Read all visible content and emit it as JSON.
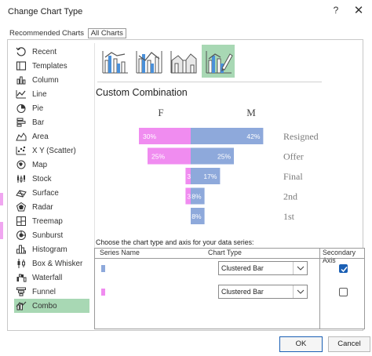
{
  "window": {
    "title": "Change Chart Type",
    "help_glyph": "?",
    "close_glyph": "✕"
  },
  "tabs": [
    {
      "label": "Recommended Charts",
      "active": false
    },
    {
      "label": "All Charts",
      "active": true
    }
  ],
  "sidebar": {
    "items": [
      {
        "label": "Recent",
        "icon": "recent-icon"
      },
      {
        "label": "Templates",
        "icon": "templates-icon"
      },
      {
        "label": "Column",
        "icon": "column-chart-icon"
      },
      {
        "label": "Line",
        "icon": "line-chart-icon"
      },
      {
        "label": "Pie",
        "icon": "pie-chart-icon"
      },
      {
        "label": "Bar",
        "icon": "bar-chart-icon"
      },
      {
        "label": "Area",
        "icon": "area-chart-icon"
      },
      {
        "label": "X Y (Scatter)",
        "icon": "scatter-chart-icon"
      },
      {
        "label": "Map",
        "icon": "map-chart-icon"
      },
      {
        "label": "Stock",
        "icon": "stock-chart-icon"
      },
      {
        "label": "Surface",
        "icon": "surface-chart-icon"
      },
      {
        "label": "Radar",
        "icon": "radar-chart-icon"
      },
      {
        "label": "Treemap",
        "icon": "treemap-chart-icon"
      },
      {
        "label": "Sunburst",
        "icon": "sunburst-chart-icon"
      },
      {
        "label": "Histogram",
        "icon": "histogram-chart-icon"
      },
      {
        "label": "Box & Whisker",
        "icon": "box-whisker-chart-icon"
      },
      {
        "label": "Waterfall",
        "icon": "waterfall-chart-icon"
      },
      {
        "label": "Funnel",
        "icon": "funnel-chart-icon"
      },
      {
        "label": "Combo",
        "icon": "combo-chart-icon"
      }
    ],
    "selected_index": 18
  },
  "gallery": {
    "thumbnails": [
      {
        "icon": "clustered-column-line-icon",
        "selected": false
      },
      {
        "icon": "clustered-column-line-secondary-axis-icon",
        "selected": false
      },
      {
        "icon": "stacked-area-clustered-column-icon",
        "selected": false
      },
      {
        "icon": "custom-combination-icon",
        "selected": true
      }
    ]
  },
  "section_title": "Custom Combination",
  "colors": {
    "series_f": "#f08cf0",
    "series_m": "#8ea9db",
    "selected_highlight": "#a8d8b4",
    "accent": "#1a5fb4"
  },
  "chart_data": {
    "type": "bar",
    "subtype": "butterfly / back-to-back horizontal bar",
    "categories": [
      "Resigned",
      "Offer",
      "Final",
      "2nd",
      "1st"
    ],
    "series": [
      {
        "name": "F",
        "values": [
          30,
          25,
          3,
          3,
          null
        ],
        "labels": [
          "30%",
          "25%",
          "3%",
          "3%",
          ""
        ],
        "color": "#f08cf0",
        "direction": "left"
      },
      {
        "name": "M",
        "values": [
          42,
          25,
          17,
          8,
          8
        ],
        "labels": [
          "42%",
          "25%",
          "17%",
          "8%",
          "8%"
        ],
        "color": "#8ea9db",
        "direction": "right"
      }
    ],
    "unit": "%",
    "legend": "series names as column headers above bars",
    "grid": false
  },
  "series_panel": {
    "caption": "Choose the chart type and axis for your data series:",
    "headers": {
      "name": "Series Name",
      "type": "Chart Type",
      "secondary": "Secondary Axis"
    },
    "rows": [
      {
        "swatch_color": "#8ea9db",
        "chart_type": "Clustered Bar",
        "secondary_axis": true
      },
      {
        "swatch_color": "#f08cf0",
        "chart_type": "Clustered Bar",
        "secondary_axis": false
      }
    ]
  },
  "buttons": {
    "ok": "OK",
    "cancel": "Cancel"
  }
}
